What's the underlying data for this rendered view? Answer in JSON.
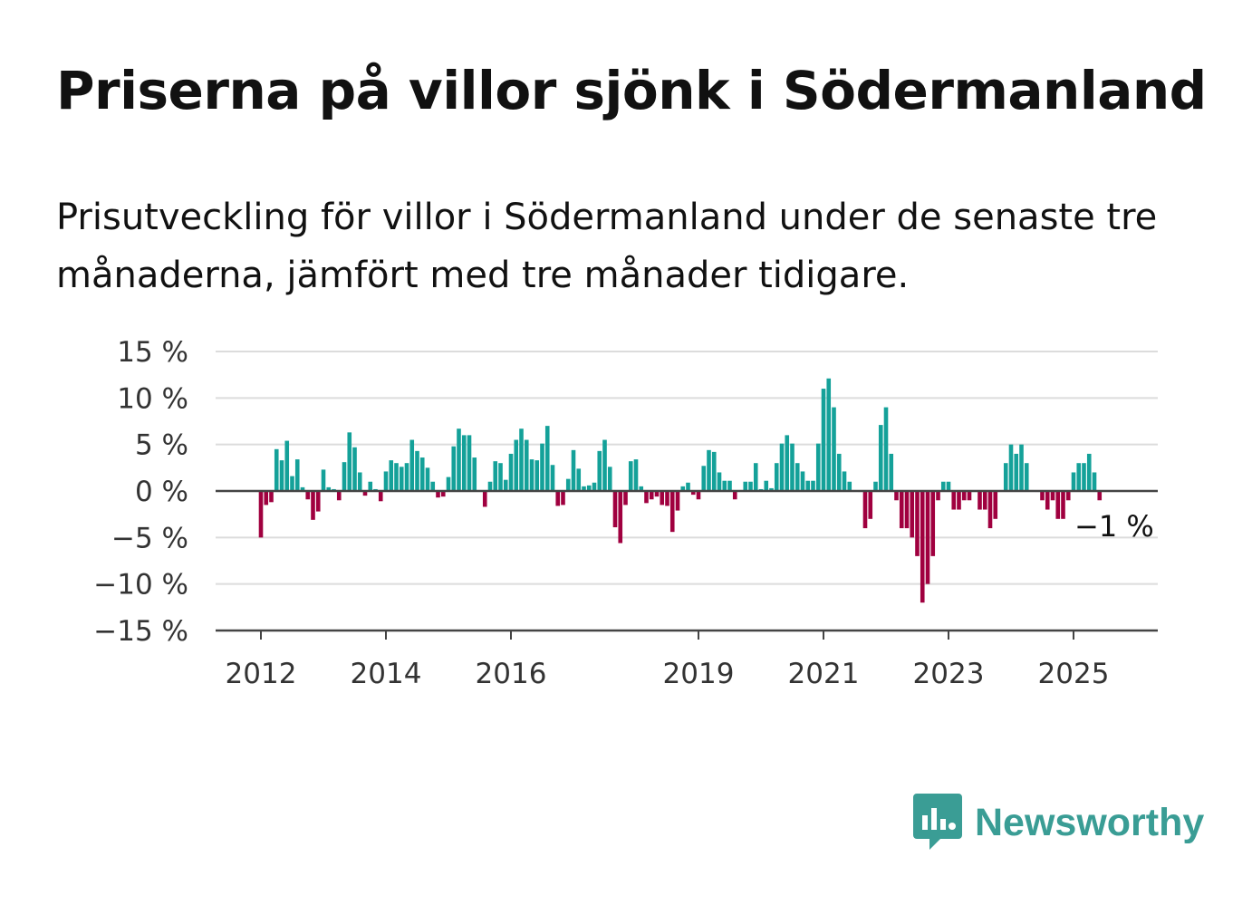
{
  "title": "Priserna på villor sjönk i Södermanland",
  "subtitle": "Prisutveckling för villor i Södermanland under de senaste tre månaderna, jämfört med tre månader tidigare.",
  "brand": {
    "name": "Newsworthy",
    "color": "#3a9d95"
  },
  "chart_data": {
    "type": "bar",
    "ylim": [
      -15,
      15
    ],
    "yticks": [
      15,
      10,
      5,
      0,
      -5,
      -10,
      -15
    ],
    "ytick_labels": [
      "15 %",
      "10 %",
      "5 %",
      "0 %",
      "−5 %",
      "−10 %",
      "−15 %"
    ],
    "xticks": [
      2012,
      2014,
      2016,
      2019,
      2021,
      2023,
      2025
    ],
    "xtick_labels": [
      "2012",
      "2014",
      "2016",
      "2019",
      "2021",
      "2023",
      "2025"
    ],
    "x_start": "2012-01",
    "grid": true,
    "colors": {
      "positive": "#14a199",
      "negative": "#a0003f"
    },
    "last_label": "−1 %",
    "values": [
      -5.0,
      -1.5,
      -1.2,
      4.5,
      3.3,
      5.4,
      1.6,
      3.4,
      0.4,
      -0.9,
      -3.1,
      -2.2,
      2.3,
      0.4,
      0.2,
      -1.0,
      3.1,
      6.3,
      4.7,
      2.0,
      -0.5,
      1.0,
      0.2,
      -1.1,
      2.1,
      3.3,
      3.0,
      2.6,
      3.0,
      5.5,
      4.3,
      3.6,
      2.5,
      1.0,
      -0.7,
      -0.6,
      1.5,
      4.8,
      6.7,
      6.0,
      6.0,
      3.6,
      0.1,
      -1.7,
      1.0,
      3.2,
      3.0,
      1.2,
      4.0,
      5.5,
      6.7,
      5.5,
      3.4,
      3.3,
      5.1,
      7.0,
      2.8,
      -1.6,
      -1.5,
      1.3,
      4.4,
      2.4,
      0.5,
      0.6,
      0.9,
      4.3,
      5.5,
      2.6,
      -3.9,
      -5.6,
      -1.5,
      3.2,
      3.4,
      0.5,
      -1.3,
      -0.9,
      -0.6,
      -1.5,
      -1.6,
      -4.4,
      -2.1,
      0.5,
      0.9,
      -0.4,
      -0.9,
      2.7,
      4.4,
      4.2,
      2.0,
      1.1,
      1.1,
      -0.9,
      0.1,
      1.0,
      1.0,
      3.0,
      0.2,
      1.1,
      0.3,
      3.0,
      5.1,
      6.0,
      5.1,
      3.0,
      2.1,
      1.1,
      1.1,
      5.1,
      11.0,
      12.1,
      9.0,
      4.0,
      2.1,
      1.0,
      0.1,
      -0.1,
      -4.0,
      -3.0,
      1.0,
      7.1,
      9.0,
      4.0,
      -1.0,
      -4.0,
      -4.0,
      -5.0,
      -7.0,
      -12.0,
      -10.0,
      -7.0,
      -1.0,
      1.0,
      1.0,
      -2.0,
      -2.0,
      -1.0,
      -1.0,
      -0.1,
      -2.0,
      -2.0,
      -4.0,
      -3.0,
      0.1,
      3.0,
      5.0,
      4.0,
      5.0,
      3.0,
      0.1,
      -0.1,
      -1.0,
      -2.0,
      -1.0,
      -3.0,
      -3.0,
      -1.0,
      2.0,
      3.0,
      3.0,
      4.0,
      2.0,
      -1.0
    ]
  }
}
